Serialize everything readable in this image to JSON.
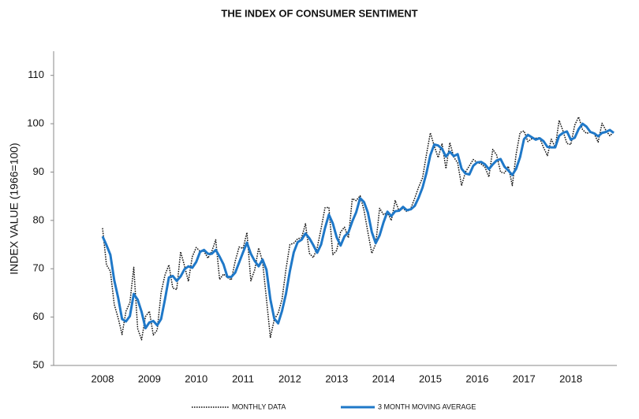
{
  "chart_data": {
    "type": "line",
    "title": "THE INDEX OF CONSUMER SENTIMENT",
    "y_label": "INDEX VALUE (1966=100)",
    "categories": [
      "2008",
      null,
      null,
      null,
      null,
      null,
      null,
      null,
      null,
      null,
      null,
      null,
      "2009",
      null,
      null,
      null,
      null,
      null,
      null,
      null,
      null,
      null,
      null,
      null,
      "2010",
      null,
      null,
      null,
      null,
      null,
      null,
      null,
      null,
      null,
      null,
      null,
      "2011",
      null,
      null,
      null,
      null,
      null,
      null,
      null,
      null,
      null,
      null,
      null,
      "2012",
      null,
      null,
      null,
      null,
      null,
      null,
      null,
      null,
      null,
      null,
      null,
      "2013",
      null,
      null,
      null,
      null,
      null,
      null,
      null,
      null,
      null,
      null,
      null,
      "2014",
      null,
      null,
      null,
      null,
      null,
      null,
      null,
      null,
      null,
      null,
      null,
      "2015",
      null,
      null,
      null,
      null,
      null,
      null,
      null,
      null,
      null,
      null,
      null,
      "2016",
      null,
      null,
      null,
      null,
      null,
      null,
      null,
      null,
      null,
      null,
      null,
      "2017",
      null,
      null,
      null,
      null,
      null,
      null,
      null,
      null,
      null,
      null,
      null,
      "2018",
      null,
      null,
      null,
      null,
      null,
      null,
      null,
      null,
      null,
      null,
      null
    ],
    "series": [
      {
        "name": "MONTHLY DATA",
        "color": "#111111",
        "style": "dotted",
        "values": [
          78.4,
          70.8,
          69.5,
          62.6,
          59.8,
          56.4,
          61.2,
          63.0,
          70.3,
          57.6,
          55.3,
          60.1,
          61.2,
          56.3,
          57.3,
          65.1,
          68.7,
          70.8,
          66.0,
          65.7,
          73.5,
          70.6,
          67.4,
          72.5,
          74.4,
          73.6,
          73.6,
          72.2,
          73.6,
          76.0,
          67.8,
          68.9,
          68.2,
          67.7,
          71.6,
          74.5,
          74.2,
          77.5,
          67.5,
          69.8,
          74.3,
          71.5,
          63.7,
          55.8,
          59.5,
          60.8,
          63.7,
          69.9,
          75.0,
          75.3,
          76.2,
          76.4,
          79.3,
          73.2,
          72.3,
          74.3,
          78.3,
          82.6,
          82.7,
          72.9,
          73.8,
          77.6,
          78.6,
          76.4,
          84.5,
          84.1,
          85.1,
          82.1,
          77.5,
          73.2,
          75.1,
          82.5,
          81.2,
          81.6,
          80.0,
          84.1,
          81.9,
          82.5,
          81.8,
          82.5,
          84.6,
          86.9,
          88.8,
          93.6,
          98.1,
          95.4,
          93.0,
          95.9,
          90.7,
          96.1,
          93.1,
          91.9,
          87.2,
          90.0,
          91.3,
          92.6,
          92.0,
          91.7,
          91.0,
          89.0,
          94.7,
          93.5,
          90.0,
          89.8,
          91.2,
          87.2,
          93.8,
          98.2,
          98.5,
          96.3,
          96.9,
          97.0,
          97.1,
          95.1,
          93.4,
          96.8,
          95.1,
          100.7,
          98.5,
          95.9,
          95.7,
          99.7,
          101.4,
          98.8,
          98.0,
          98.2,
          97.9,
          96.2,
          100.1,
          98.6,
          97.5,
          98.3
        ]
      },
      {
        "name": "3 MONTH MOVING AVERAGE",
        "color": "#1f78c8",
        "style": "solid",
        "values": [
          76.7,
          74.9,
          72.9,
          67.6,
          64.0,
          59.6,
          59.1,
          60.2,
          64.8,
          63.6,
          61.1,
          57.7,
          58.9,
          59.2,
          58.3,
          59.6,
          63.7,
          68.2,
          68.5,
          67.5,
          68.4,
          69.9,
          70.5,
          70.2,
          71.4,
          73.5,
          73.9,
          73.1,
          73.1,
          73.9,
          72.5,
          70.9,
          68.3,
          68.3,
          69.2,
          71.3,
          73.4,
          75.4,
          73.1,
          71.6,
          70.5,
          71.9,
          69.8,
          63.7,
          59.7,
          58.7,
          61.3,
          64.8,
          69.5,
          73.4,
          75.5,
          76.0,
          77.3,
          76.3,
          74.9,
          73.3,
          75.0,
          78.4,
          81.2,
          79.4,
          76.5,
          74.8,
          76.7,
          77.5,
          79.8,
          81.7,
          84.6,
          83.8,
          81.6,
          77.6,
          75.3,
          76.9,
          79.6,
          81.8,
          80.9,
          81.9,
          82.0,
          82.8,
          82.1,
          82.3,
          83.0,
          84.7,
          86.8,
          89.8,
          93.5,
          95.7,
          95.5,
          94.8,
          93.2,
          94.2,
          93.3,
          93.7,
          90.7,
          89.7,
          89.5,
          91.3,
          92.0,
          92.1,
          91.6,
          90.6,
          91.6,
          92.4,
          92.7,
          91.1,
          90.3,
          89.4,
          90.7,
          93.1,
          96.8,
          97.7,
          97.2,
          96.7,
          97.0,
          96.4,
          95.2,
          95.1,
          95.1,
          97.5,
          98.1,
          98.4,
          96.7,
          97.1,
          98.9,
          100.0,
          99.4,
          98.3,
          98.0,
          97.4,
          98.1,
          98.3,
          98.7,
          98.1
        ]
      }
    ],
    "ylim": [
      50,
      115
    ],
    "yticks": [
      50,
      60,
      70,
      80,
      90,
      100,
      110
    ],
    "grid": false,
    "legend": "bottom"
  }
}
